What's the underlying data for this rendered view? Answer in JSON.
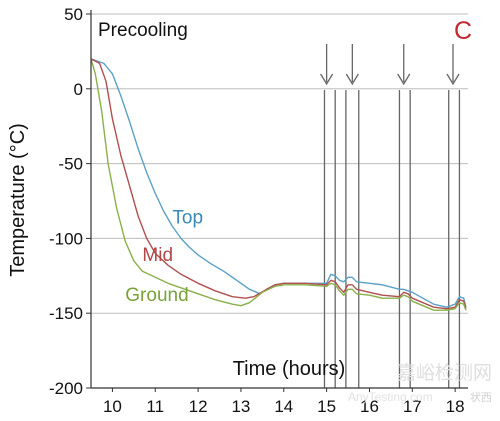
{
  "chart_data": {
    "type": "line",
    "panel_letter": "C",
    "panel_label": "Precooling",
    "xlabel": "Time (hours)",
    "ylabel": "Temperature (°C)",
    "xlim": [
      9.5,
      18.3
    ],
    "ylim": [
      -200,
      50
    ],
    "xticks": [
      10,
      11,
      12,
      13,
      14,
      15,
      16,
      17,
      18
    ],
    "yticks": [
      -200,
      -150,
      -100,
      -50,
      0,
      50
    ],
    "grid": true,
    "legend": "inline-labels",
    "series": [
      {
        "name": "Top",
        "color": "#5aa0c8",
        "points": [
          [
            9.5,
            20
          ],
          [
            9.8,
            17
          ],
          [
            10.0,
            10
          ],
          [
            10.2,
            -5
          ],
          [
            10.4,
            -22
          ],
          [
            10.6,
            -40
          ],
          [
            10.8,
            -56
          ],
          [
            11.0,
            -70
          ],
          [
            11.2,
            -82
          ],
          [
            11.4,
            -92
          ],
          [
            11.6,
            -100
          ],
          [
            11.8,
            -106
          ],
          [
            12.0,
            -111
          ],
          [
            12.3,
            -117
          ],
          [
            12.6,
            -122
          ],
          [
            12.9,
            -128
          ],
          [
            13.2,
            -134
          ],
          [
            13.45,
            -137
          ],
          [
            13.6,
            -134
          ],
          [
            13.8,
            -131
          ],
          [
            14.0,
            -130
          ],
          [
            14.5,
            -130
          ],
          [
            15.0,
            -130
          ],
          [
            15.1,
            -124
          ],
          [
            15.2,
            -125
          ],
          [
            15.3,
            -128
          ],
          [
            15.4,
            -129
          ],
          [
            15.5,
            -126
          ],
          [
            15.6,
            -126
          ],
          [
            15.7,
            -129
          ],
          [
            16.0,
            -130
          ],
          [
            16.3,
            -131
          ],
          [
            16.7,
            -134
          ],
          [
            16.8,
            -134
          ],
          [
            17.0,
            -136
          ],
          [
            17.5,
            -144
          ],
          [
            17.8,
            -146
          ],
          [
            18.0,
            -144
          ],
          [
            18.1,
            -139
          ],
          [
            18.2,
            -140
          ],
          [
            18.25,
            -146
          ]
        ]
      },
      {
        "name": "Mid",
        "color": "#b05050",
        "points": [
          [
            9.5,
            20
          ],
          [
            9.7,
            17
          ],
          [
            9.85,
            5
          ],
          [
            10.0,
            -20
          ],
          [
            10.2,
            -45
          ],
          [
            10.4,
            -65
          ],
          [
            10.6,
            -85
          ],
          [
            10.8,
            -100
          ],
          [
            11.0,
            -110
          ],
          [
            11.3,
            -118
          ],
          [
            11.6,
            -124
          ],
          [
            12.0,
            -130
          ],
          [
            12.4,
            -135
          ],
          [
            12.8,
            -139
          ],
          [
            13.1,
            -140
          ],
          [
            13.3,
            -139
          ],
          [
            13.6,
            -134
          ],
          [
            13.8,
            -131
          ],
          [
            14.0,
            -130
          ],
          [
            14.5,
            -130
          ],
          [
            15.0,
            -131
          ],
          [
            15.1,
            -128
          ],
          [
            15.2,
            -129
          ],
          [
            15.3,
            -133
          ],
          [
            15.4,
            -136
          ],
          [
            15.5,
            -131
          ],
          [
            15.6,
            -131
          ],
          [
            15.7,
            -134
          ],
          [
            16.0,
            -136
          ],
          [
            16.3,
            -138
          ],
          [
            16.7,
            -139
          ],
          [
            16.8,
            -136
          ],
          [
            16.9,
            -137
          ],
          [
            17.0,
            -140
          ],
          [
            17.5,
            -146
          ],
          [
            17.8,
            -147
          ],
          [
            18.0,
            -146
          ],
          [
            18.1,
            -141
          ],
          [
            18.2,
            -142
          ],
          [
            18.25,
            -147
          ]
        ]
      },
      {
        "name": "Ground",
        "color": "#8ab04a",
        "points": [
          [
            9.5,
            20
          ],
          [
            9.6,
            10
          ],
          [
            9.75,
            -15
          ],
          [
            9.9,
            -50
          ],
          [
            10.1,
            -80
          ],
          [
            10.3,
            -102
          ],
          [
            10.5,
            -115
          ],
          [
            10.7,
            -122
          ],
          [
            11.0,
            -126
          ],
          [
            11.3,
            -130
          ],
          [
            11.7,
            -134
          ],
          [
            12.0,
            -137
          ],
          [
            12.4,
            -141
          ],
          [
            12.8,
            -144
          ],
          [
            13.0,
            -145
          ],
          [
            13.2,
            -143
          ],
          [
            13.5,
            -136
          ],
          [
            13.8,
            -132
          ],
          [
            14.0,
            -131
          ],
          [
            14.5,
            -131
          ],
          [
            15.0,
            -132
          ],
          [
            15.1,
            -130
          ],
          [
            15.2,
            -131
          ],
          [
            15.3,
            -135
          ],
          [
            15.4,
            -138
          ],
          [
            15.5,
            -134
          ],
          [
            15.6,
            -134
          ],
          [
            15.7,
            -137
          ],
          [
            16.0,
            -138
          ],
          [
            16.3,
            -140
          ],
          [
            16.7,
            -140
          ],
          [
            16.8,
            -138
          ],
          [
            16.9,
            -139
          ],
          [
            17.0,
            -142
          ],
          [
            17.5,
            -148
          ],
          [
            17.8,
            -148
          ],
          [
            18.0,
            -147
          ],
          [
            18.1,
            -143
          ],
          [
            18.2,
            -144
          ],
          [
            18.25,
            -148
          ]
        ]
      }
    ],
    "series_labels": [
      {
        "text": "Top",
        "color": "#3a8ab8",
        "x": 11.4,
        "y": -90
      },
      {
        "text": "Mid",
        "color": "#b04848",
        "x": 10.7,
        "y": -115
      },
      {
        "text": "Ground",
        "color": "#7aa23a",
        "x": 10.3,
        "y": -142
      }
    ],
    "event_markers": [
      {
        "arrow_x": 15.0,
        "lines": [
          14.95,
          15.2
        ]
      },
      {
        "arrow_x": 15.6,
        "lines": [
          15.45,
          15.75
        ]
      },
      {
        "arrow_x": 16.8,
        "lines": [
          16.7,
          16.95
        ]
      },
      {
        "arrow_x": 17.95,
        "lines": [
          17.85,
          18.1
        ]
      }
    ],
    "marker_color": "#666666",
    "grid_color": "#bdbdbd",
    "accent_color": "#c0282d"
  },
  "watermark": {
    "lines": [
      "嘉峪检测网",
      "AnyTesting.com",
      "状西"
    ],
    "color": "#dedede"
  }
}
